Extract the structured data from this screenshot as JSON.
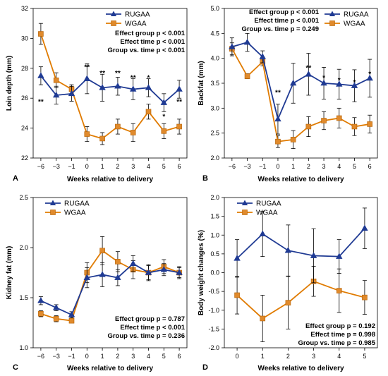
{
  "colors": {
    "RUGAA": "#1f3a93",
    "WGAA": "#e07b00",
    "marker_WGAA_fill": "#e08a2c",
    "errorbar": "#000000"
  },
  "chart_data": [
    {
      "panel": "A",
      "type": "line",
      "xlabel": "Weeks relative to delivery",
      "ylabel": "Loin depth (mm)",
      "x": [
        -6,
        -3,
        -1,
        0,
        1,
        2,
        3,
        4,
        5,
        6
      ],
      "x_tick_labels": [
        "−6",
        "−3",
        "−1",
        "0",
        "1",
        "2",
        "3",
        "4",
        "5",
        "6"
      ],
      "ylim": [
        22,
        32
      ],
      "y_ticks": [
        22,
        24,
        26,
        28,
        30,
        32
      ],
      "legend_position": "top-right",
      "series": [
        {
          "name": "RUGAA",
          "marker": "triangle",
          "values": [
            27.5,
            26.2,
            26.3,
            27.3,
            26.7,
            26.8,
            26.6,
            26.7,
            25.7,
            26.6
          ],
          "errors": [
            0.6,
            0.6,
            0.5,
            1.0,
            0.9,
            0.6,
            0.7,
            0.6,
            0.6,
            0.6
          ]
        },
        {
          "name": "WGAA",
          "marker": "square",
          "values": [
            30.3,
            27.2,
            26.6,
            23.6,
            23.3,
            24.1,
            23.7,
            25.1,
            23.8,
            24.1
          ],
          "errors": [
            0.7,
            0.5,
            0.3,
            0.5,
            0.4,
            0.5,
            0.6,
            0.5,
            0.5,
            0.5
          ]
        }
      ],
      "significance": [
        {
          "x": -6,
          "label": "**",
          "y": 25.8
        },
        {
          "x": 0,
          "label": "**",
          "y": 28.1
        },
        {
          "x": 1,
          "label": "**",
          "y": 27.7
        },
        {
          "x": 2,
          "label": "**",
          "y": 27.7
        },
        {
          "x": 3,
          "label": "**",
          "y": 27.4
        },
        {
          "x": 4,
          "label": "*",
          "y": 27.4
        },
        {
          "x": 5,
          "label": "*",
          "y": 24.8
        },
        {
          "x": 6,
          "label": "**",
          "y": 25.8
        }
      ],
      "stats": [
        "Effect group p < 0.001",
        "Effect time p < 0.001",
        "Group vs. time p < 0.001"
      ],
      "stats_position": "upper-right"
    },
    {
      "panel": "B",
      "type": "line",
      "xlabel": "Weeks relative to delivery",
      "ylabel": "Backfat (mm)",
      "x": [
        -6,
        -3,
        -1,
        0,
        1,
        2,
        3,
        4,
        5,
        6
      ],
      "x_tick_labels": [
        "−6",
        "−3",
        "−1",
        "0",
        "1",
        "2",
        "3",
        "4",
        "5",
        "6"
      ],
      "ylim": [
        2.0,
        5.0
      ],
      "y_ticks": [
        2.0,
        2.5,
        3.0,
        3.5,
        4.0,
        4.5,
        5.0
      ],
      "legend_position": "top-right",
      "series": [
        {
          "name": "RUGAA",
          "marker": "triangle",
          "values": [
            4.23,
            4.32,
            4.03,
            2.78,
            3.5,
            3.68,
            3.5,
            3.48,
            3.45,
            3.6
          ],
          "errors": [
            0.18,
            0.18,
            0.12,
            0.3,
            0.4,
            0.42,
            0.32,
            0.3,
            0.32,
            0.38
          ]
        },
        {
          "name": "WGAA",
          "marker": "square",
          "values": [
            4.19,
            3.64,
            3.93,
            2.33,
            2.37,
            2.63,
            2.75,
            2.8,
            2.63,
            2.68
          ],
          "errors": [
            0.12,
            0.05,
            0.08,
            0.12,
            0.18,
            0.2,
            0.18,
            0.2,
            0.18,
            0.18
          ]
        }
      ],
      "significance": [
        {
          "x": 0,
          "label": "**",
          "y": 3.32
        },
        {
          "x": 2,
          "label": "**",
          "y": 3.82
        },
        {
          "x": 3,
          "label": "*",
          "y": 3.62
        },
        {
          "x": 4,
          "label": "*",
          "y": 3.57
        },
        {
          "x": 5,
          "label": "*",
          "y": 3.53
        },
        {
          "x": 6,
          "label": "*",
          "y": 3.7
        }
      ],
      "stats": [
        "Effect group p < 0.001",
        "Effect time p < 0.001",
        "Group vs. time p = 0.249"
      ],
      "stats_position": "upper-left"
    },
    {
      "panel": "C",
      "type": "line",
      "xlabel": "Weeks relative to delivery",
      "ylabel": "Kidney fat (mm)",
      "x": [
        -6,
        -3,
        -1,
        0,
        1,
        2,
        3,
        4,
        5,
        6
      ],
      "x_tick_labels": [
        "−6",
        "−3",
        "−1",
        "0",
        "1",
        "2",
        "3",
        "4",
        "5",
        "6"
      ],
      "ylim": [
        1.0,
        2.5
      ],
      "y_ticks": [
        1.0,
        1.5,
        2.0,
        2.5
      ],
      "legend_position": "top-left",
      "series": [
        {
          "name": "RUGAA",
          "marker": "triangle",
          "values": [
            1.47,
            1.4,
            1.33,
            1.7,
            1.73,
            1.7,
            1.84,
            1.75,
            1.78,
            1.75
          ],
          "errors": [
            0.04,
            0.03,
            0.03,
            0.1,
            0.12,
            0.08,
            0.08,
            0.07,
            0.06,
            0.06
          ]
        },
        {
          "name": "WGAA",
          "marker": "square",
          "values": [
            1.34,
            1.29,
            1.27,
            1.75,
            1.97,
            1.86,
            1.78,
            1.75,
            1.81,
            1.75
          ],
          "errors": [
            0.03,
            0.03,
            0.02,
            0.1,
            0.14,
            0.1,
            0.09,
            0.08,
            0.07,
            0.05
          ]
        }
      ],
      "significance": [],
      "stats": [
        "Effect group p = 0.787",
        "Effect time p < 0.001",
        "Group vs. time p = 0.236"
      ],
      "stats_position": "lower-right"
    },
    {
      "panel": "D",
      "type": "line",
      "xlabel": "Weeks relative to delivery",
      "ylabel": "Body weight changes (%)",
      "x": [
        0,
        1,
        2,
        3,
        4,
        5
      ],
      "x_tick_labels": [
        "0",
        "1",
        "2",
        "3",
        "4",
        "5"
      ],
      "ylim": [
        -2.0,
        2.0
      ],
      "y_ticks": [
        -2.0,
        -1.5,
        -1.0,
        -0.5,
        0.0,
        0.5,
        1.0,
        1.5,
        2.0
      ],
      "legend_position": "top-left",
      "series": [
        {
          "name": "RUGAA",
          "marker": "triangle",
          "values": [
            0.38,
            1.03,
            0.59,
            0.45,
            0.43,
            1.18
          ],
          "errors": [
            0.5,
            0.6,
            0.68,
            0.72,
            0.45,
            0.54
          ]
        },
        {
          "name": "WGAA",
          "marker": "square",
          "values": [
            -0.6,
            -1.22,
            -0.8,
            -0.23,
            -0.48,
            -0.66
          ],
          "errors": [
            0.5,
            0.62,
            0.7,
            0.4,
            0.58,
            0.45
          ]
        }
      ],
      "significance": [],
      "stats": [
        "Effect group p = 0.192",
        "Effect time p = 0.998",
        "Group vs. time p = 0.985"
      ],
      "stats_position": "lower-right"
    }
  ]
}
